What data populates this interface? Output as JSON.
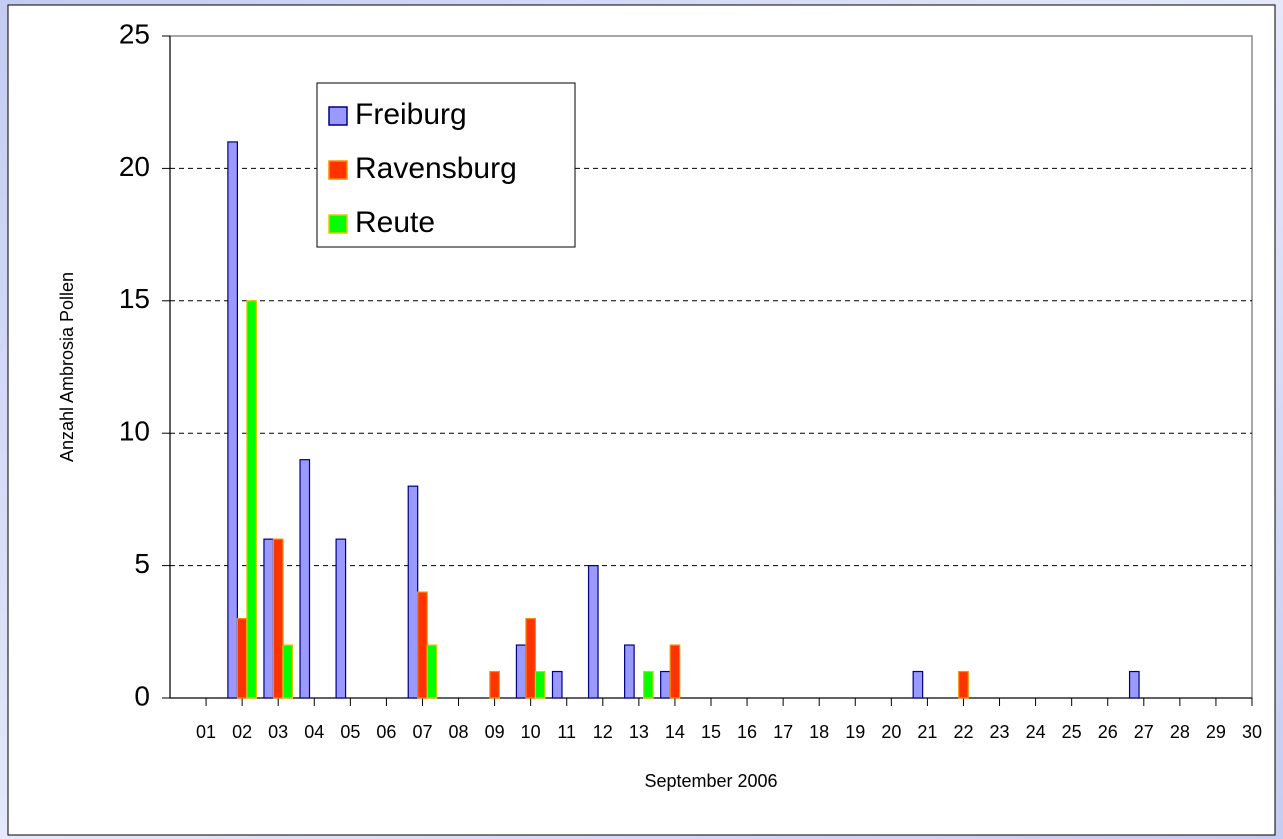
{
  "chart_data": {
    "type": "bar",
    "x_label": "September 2006",
    "y_label": "Anzahl Ambrosia Pollen",
    "categories": [
      "01",
      "02",
      "03",
      "04",
      "05",
      "06",
      "07",
      "08",
      "09",
      "10",
      "11",
      "12",
      "13",
      "14",
      "15",
      "16",
      "17",
      "18",
      "19",
      "20",
      "21",
      "22",
      "23",
      "24",
      "25",
      "26",
      "27",
      "28",
      "29",
      "30"
    ],
    "series": [
      {
        "name": "Freiburg",
        "color": "#9999ff",
        "edgecolor": "#000080",
        "values": [
          0,
          21,
          6,
          9,
          6,
          0,
          8,
          0,
          0,
          2,
          1,
          5,
          2,
          1,
          0,
          0,
          0,
          0,
          0,
          0,
          1,
          0,
          0,
          0,
          0,
          0,
          1,
          0,
          0,
          0
        ]
      },
      {
        "name": "Ravensburg",
        "color": "#ff3300",
        "edgecolor": "#ff8c00",
        "values": [
          0,
          3,
          6,
          0,
          0,
          0,
          4,
          0,
          1,
          3,
          0,
          0,
          0,
          2,
          0,
          0,
          0,
          0,
          0,
          0,
          0,
          1,
          0,
          0,
          0,
          0,
          0,
          0,
          0,
          0
        ]
      },
      {
        "name": "Reute",
        "color": "#00ff00",
        "edgecolor": "#e6c800",
        "values": [
          0,
          15,
          2,
          0,
          0,
          0,
          2,
          0,
          0,
          1,
          0,
          0,
          1,
          0,
          0,
          0,
          0,
          0,
          0,
          0,
          0,
          0,
          0,
          0,
          0,
          0,
          0,
          0,
          0,
          0
        ]
      }
    ],
    "ylim": [
      0,
      25
    ],
    "yticks": [
      0,
      5,
      10,
      15,
      20,
      25
    ],
    "grid": true,
    "legend": "upper left"
  }
}
